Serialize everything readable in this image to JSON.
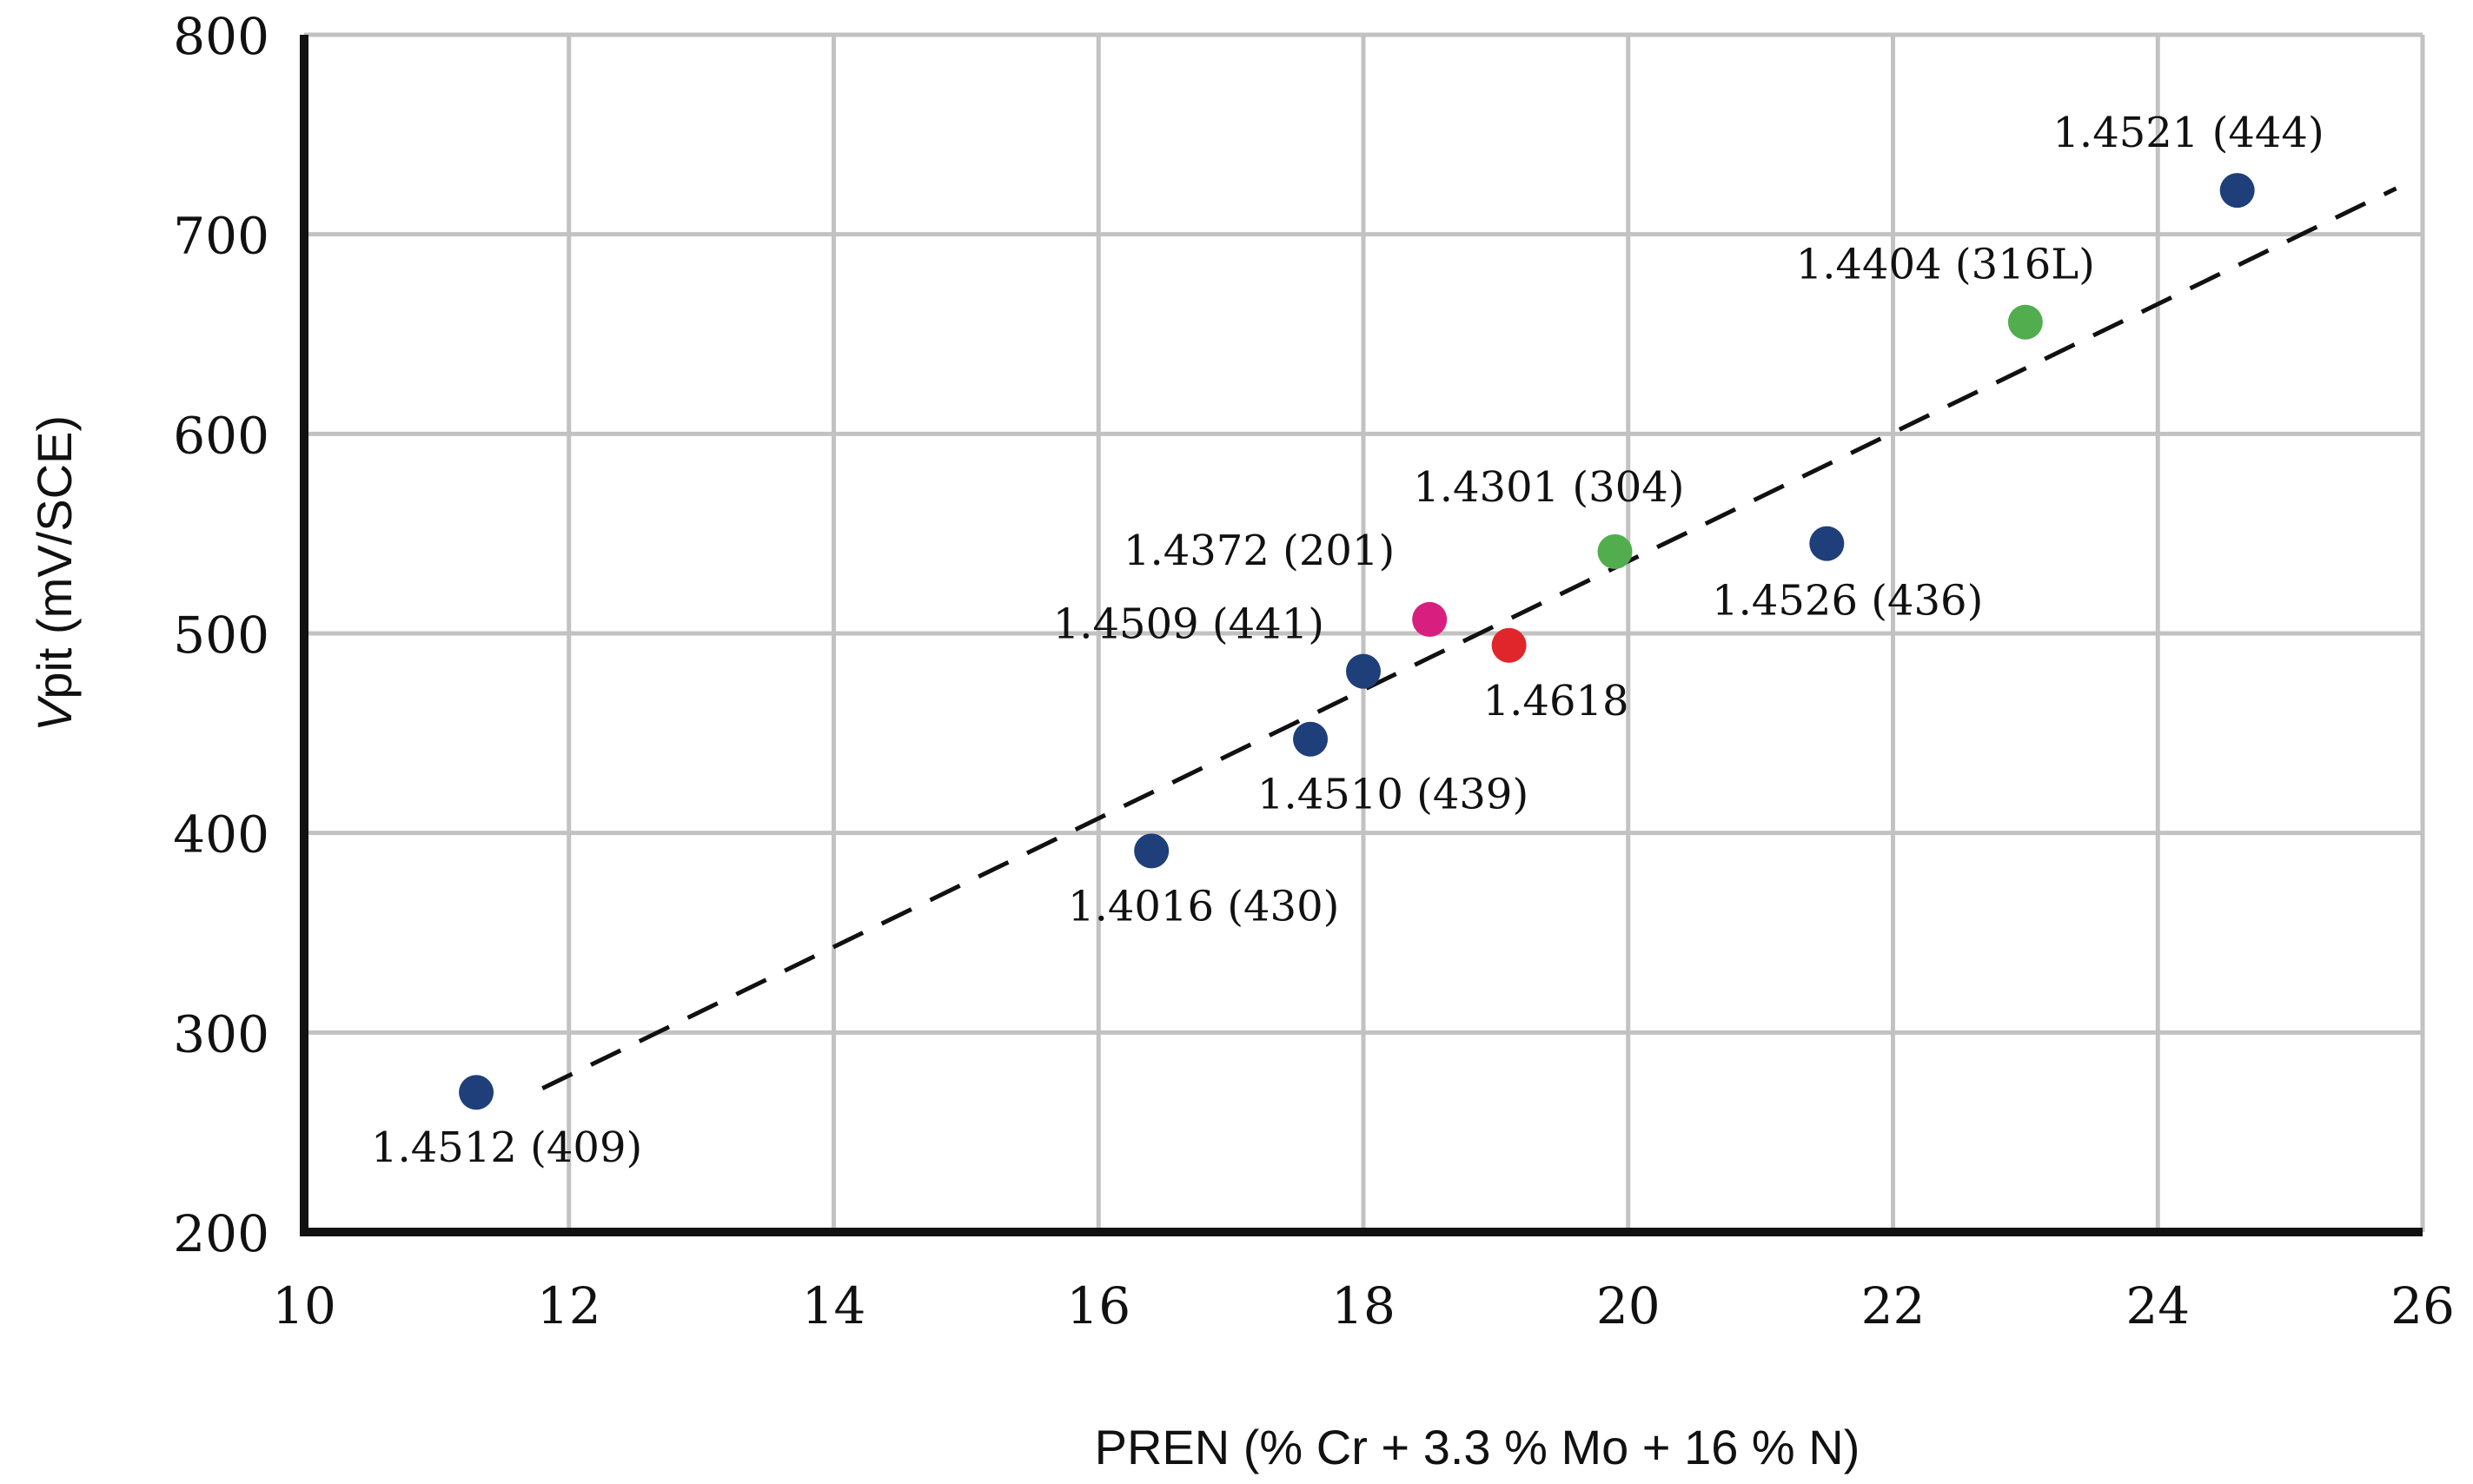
{
  "chart_data": {
    "type": "scatter",
    "xlabel": "PREN (% Cr + 3.3 % Mo + 16 % N)",
    "ylabel_italic": "V",
    "ylabel_rest": "pit (mV/SCE)",
    "xlim": [
      10,
      26
    ],
    "ylim": [
      200,
      800
    ],
    "x_ticks": [
      "10",
      "12",
      "14",
      "16",
      "18",
      "20",
      "22",
      "24",
      "26"
    ],
    "y_ticks": [
      "200",
      "300",
      "400",
      "500",
      "600",
      "700",
      "800"
    ],
    "grid": true,
    "colors": {
      "blue": "#1f3f7a",
      "green": "#52ad4e",
      "magenta": "#d81e7e",
      "red": "#e0262b"
    },
    "points": [
      {
        "label": "1.4512 (409)",
        "x": 11.3,
        "y": 270,
        "color": "blue",
        "label_pos": "below"
      },
      {
        "label": "1.4016 (430)",
        "x": 16.4,
        "y": 391,
        "color": "blue",
        "label_pos": "below"
      },
      {
        "label": "1.4510 (439)",
        "x": 17.6,
        "y": 447,
        "color": "blue",
        "label_pos": "below-right"
      },
      {
        "label": "1.4509 (441)",
        "x": 18.0,
        "y": 481,
        "color": "blue",
        "label_pos": "above-left"
      },
      {
        "label": "1.4372 (201)",
        "x": 18.5,
        "y": 507,
        "color": "magenta",
        "label_pos": "above-left"
      },
      {
        "label": "1.4618",
        "x": 19.1,
        "y": 494,
        "color": "red",
        "label_pos": "below"
      },
      {
        "label": "1.4301 (304)",
        "x": 19.9,
        "y": 541,
        "color": "green",
        "label_pos": "above-left"
      },
      {
        "label": "1.4526 (436)",
        "x": 21.5,
        "y": 545,
        "color": "blue",
        "label_pos": "below-left"
      },
      {
        "label": "1.4404 (316L)",
        "x": 23.0,
        "y": 656,
        "color": "green",
        "label_pos": "above-left"
      },
      {
        "label": "1.4521 (444)",
        "x": 24.6,
        "y": 722,
        "color": "blue",
        "label_pos": "above-left"
      }
    ],
    "trendline": {
      "x": [
        11.8,
        25.8
      ],
      "y": [
        272,
        723
      ],
      "style": "dashed"
    }
  }
}
